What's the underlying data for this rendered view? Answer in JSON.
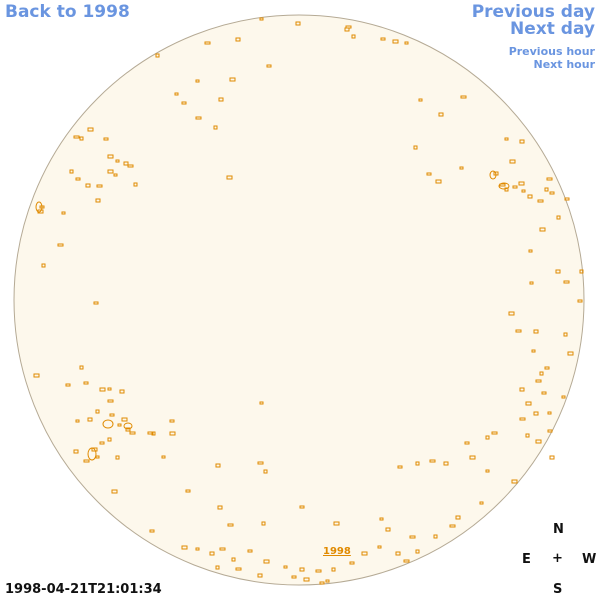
{
  "nav": {
    "back_label": "Back to 1998",
    "previous_day_label": "Previous day",
    "next_day_label": "Next day",
    "previous_hour_label": "Previous hour",
    "next_hour_label": "Next hour"
  },
  "disk": {
    "fill_color": "#fdf8ec",
    "edge_color": "#b5aa95",
    "feature_color": "#e08a00",
    "year_label": "1998"
  },
  "timestamp": "1998-04-21T21:01:34",
  "compass": {
    "north": "N",
    "east": "E",
    "center": "+",
    "west": "W",
    "south": "S"
  }
}
